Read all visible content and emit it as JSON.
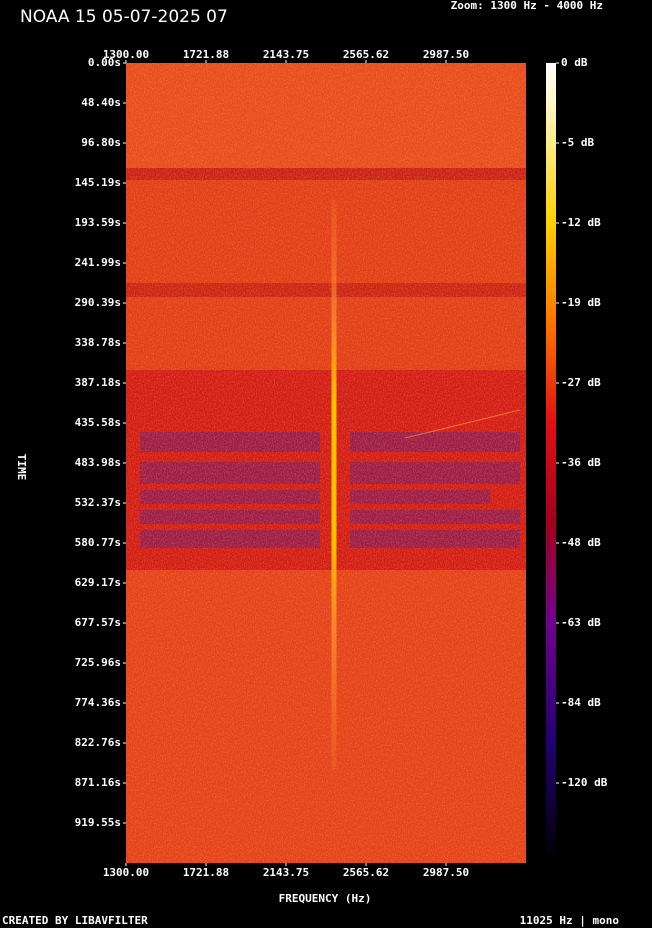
{
  "chart_data": {
    "type": "spectrogram",
    "title": "NOAA 15 05-07-2025 07",
    "zoom_label": "Zoom: 1300 Hz - 4000 Hz",
    "xlabel": "FREQUENCY (Hz)",
    "ylabel": "TIME",
    "footer_left": "CREATED BY LIBAVFILTER",
    "footer_right": "11025 Hz | mono",
    "xlim": [
      1300,
      3409.375
    ],
    "xticks": [
      {
        "value": 1300,
        "label": "1300.00"
      },
      {
        "value": 1721.875,
        "label": "1721.88"
      },
      {
        "value": 2143.75,
        "label": "2143.75"
      },
      {
        "value": 2565.625,
        "label": "2565.62"
      },
      {
        "value": 2987.5,
        "label": "2987.50"
      }
    ],
    "ylim": [
      0,
      967.95
    ],
    "yticks": [
      {
        "value": 0,
        "label": "0.00s"
      },
      {
        "value": 48.4,
        "label": "48.40s"
      },
      {
        "value": 96.8,
        "label": "96.80s"
      },
      {
        "value": 145.19,
        "label": "145.19s"
      },
      {
        "value": 193.59,
        "label": "193.59s"
      },
      {
        "value": 241.99,
        "label": "241.99s"
      },
      {
        "value": 290.39,
        "label": "290.39s"
      },
      {
        "value": 338.78,
        "label": "338.78s"
      },
      {
        "value": 387.18,
        "label": "387.18s"
      },
      {
        "value": 435.58,
        "label": "435.58s"
      },
      {
        "value": 483.98,
        "label": "483.98s"
      },
      {
        "value": 532.37,
        "label": "532.37s"
      },
      {
        "value": 580.77,
        "label": "580.77s"
      },
      {
        "value": 629.17,
        "label": "629.17s"
      },
      {
        "value": 677.57,
        "label": "677.57s"
      },
      {
        "value": 725.96,
        "label": "725.96s"
      },
      {
        "value": 774.36,
        "label": "774.36s"
      },
      {
        "value": 822.76,
        "label": "822.76s"
      },
      {
        "value": 871.16,
        "label": "871.16s"
      },
      {
        "value": 919.55,
        "label": "919.55s"
      }
    ],
    "colorbar_ticks": [
      {
        "value": 0,
        "label": "0 dB"
      },
      {
        "value": -5,
        "label": "-5 dB"
      },
      {
        "value": -12,
        "label": "-12 dB"
      },
      {
        "value": -19,
        "label": "-19 dB"
      },
      {
        "value": -27,
        "label": "-27 dB"
      },
      {
        "value": -36,
        "label": "-36 dB"
      },
      {
        "value": -48,
        "label": "-48 dB"
      },
      {
        "value": -63,
        "label": "-63 dB"
      },
      {
        "value": -84,
        "label": "-84 dB"
      },
      {
        "value": -120,
        "label": "-120 dB"
      }
    ]
  }
}
